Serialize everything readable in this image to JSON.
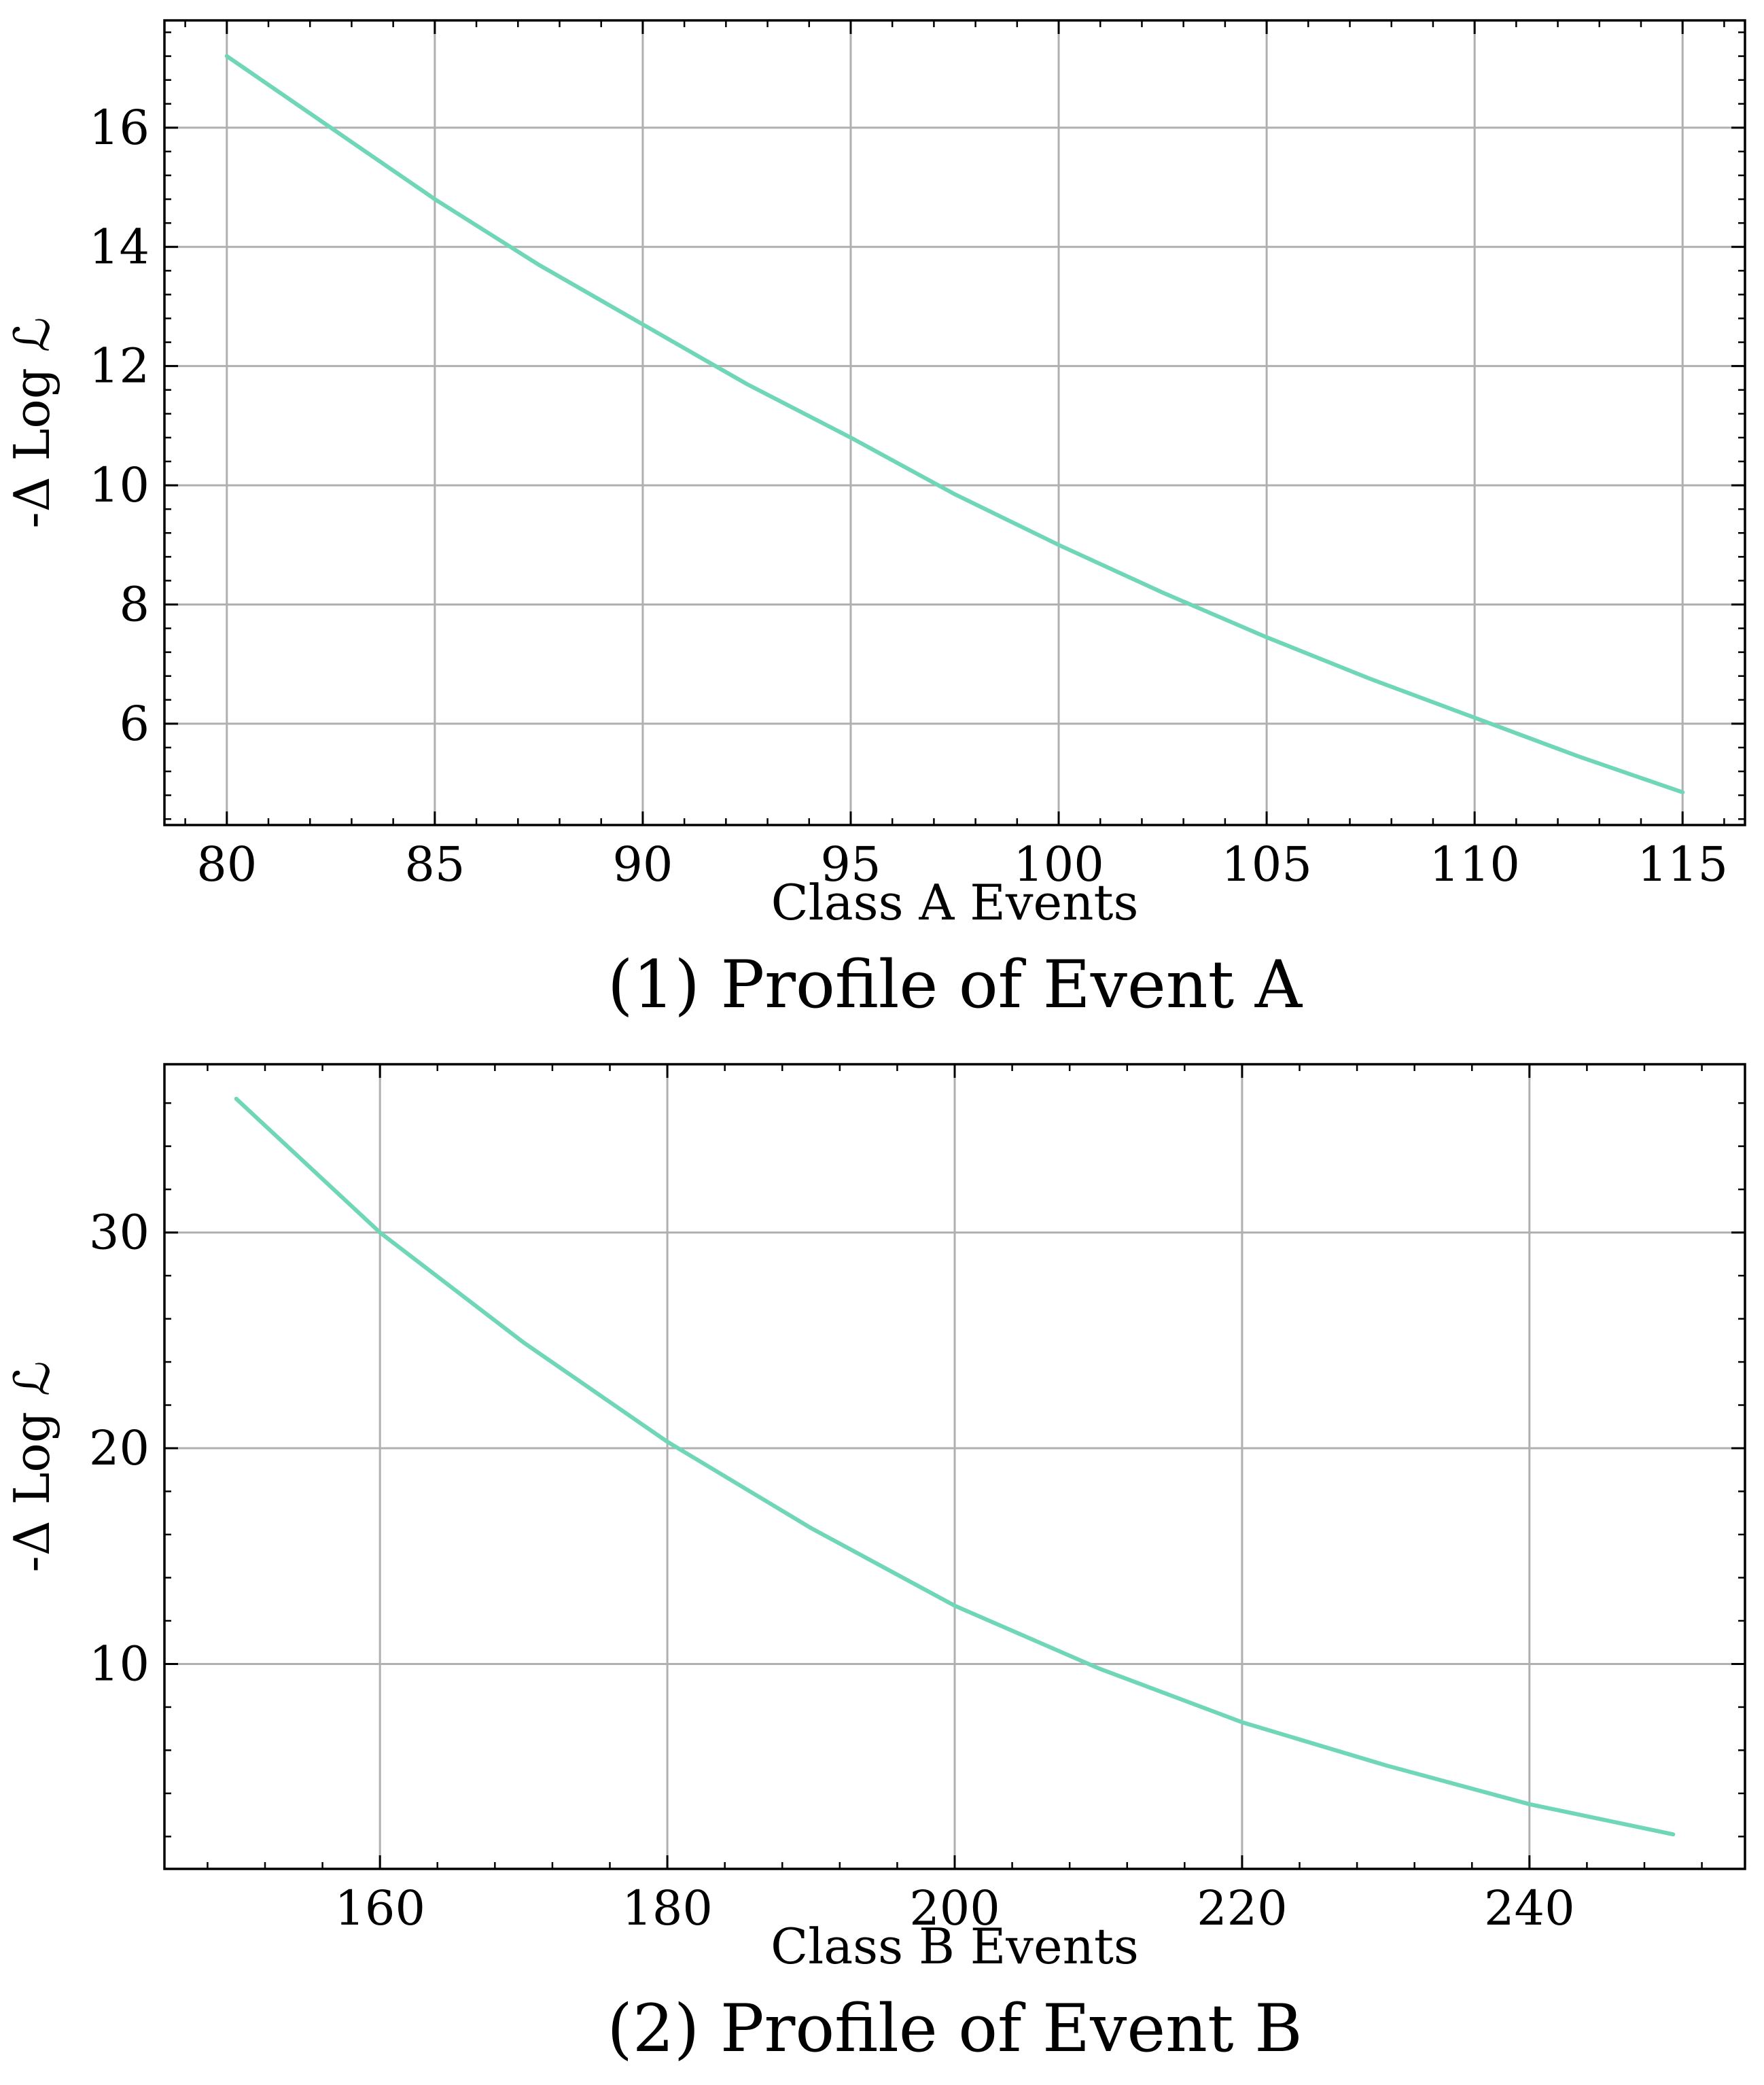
{
  "chart_data": [
    {
      "type": "line",
      "caption": "(1) Profile of Event A",
      "xlabel": "Class A Events",
      "ylabel": "-Δ Log ℒ",
      "xlim": [
        78.5,
        116.5
      ],
      "ylim": [
        4.3,
        17.8
      ],
      "xticks": [
        80,
        85,
        90,
        95,
        100,
        105,
        110,
        115
      ],
      "yticks": [
        6,
        8,
        10,
        12,
        14,
        16
      ],
      "grid": true,
      "line_color": "#6fd6b8",
      "series": [
        {
          "x": [
            80,
            82.5,
            85,
            87.5,
            90,
            92.5,
            95,
            97.5,
            100,
            102.5,
            105,
            107.5,
            110,
            112.5,
            115
          ],
          "y": [
            17.2,
            16.0,
            14.8,
            13.7,
            12.7,
            11.7,
            10.8,
            9.85,
            9.0,
            8.2,
            7.45,
            6.75,
            6.1,
            5.45,
            4.85
          ]
        }
      ]
    },
    {
      "type": "line",
      "caption": "(2) Profile of Event B",
      "xlabel": "Class B Events",
      "ylabel": "-Δ Log ℒ",
      "xlim": [
        145,
        255
      ],
      "ylim": [
        0.5,
        37.8
      ],
      "xticks": [
        160,
        180,
        200,
        220,
        240
      ],
      "yticks": [
        10,
        20,
        30
      ],
      "grid": true,
      "line_color": "#6fd6b8",
      "series": [
        {
          "x": [
            150,
            160,
            170,
            180,
            190,
            200,
            210,
            220,
            230,
            240,
            250
          ],
          "y": [
            36.2,
            30.0,
            24.9,
            20.3,
            16.3,
            12.7,
            9.8,
            7.3,
            5.3,
            3.5,
            2.1
          ]
        }
      ]
    }
  ]
}
